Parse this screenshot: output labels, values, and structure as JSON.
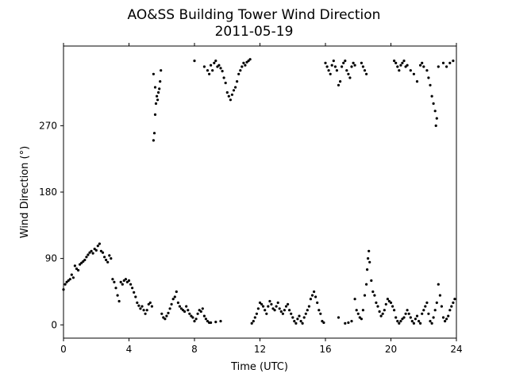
{
  "chart_data": {
    "type": "scatter",
    "title": "AO&SS Building Tower Wind Direction",
    "subtitle": "2011-05-19",
    "xlabel": "Time (UTC)",
    "ylabel": "Wind Direction (°)",
    "xlim": [
      0,
      24
    ],
    "ylim": [
      -18,
      378
    ],
    "xticks": [
      0,
      4,
      8,
      12,
      16,
      20,
      24
    ],
    "yticks": [
      0,
      90,
      180,
      270
    ],
    "grid": false,
    "legend": "none",
    "marker_color": "#000000",
    "series": [
      {
        "points": [
          [
            0.0,
            48
          ],
          [
            0.1,
            55
          ],
          [
            0.2,
            58
          ],
          [
            0.3,
            60
          ],
          [
            0.4,
            62
          ],
          [
            0.5,
            68
          ],
          [
            0.6,
            64
          ],
          [
            0.7,
            80
          ],
          [
            0.8,
            76
          ],
          [
            0.9,
            74
          ],
          [
            1.0,
            82
          ],
          [
            1.1,
            84
          ],
          [
            1.2,
            86
          ],
          [
            1.3,
            88
          ],
          [
            1.4,
            92
          ],
          [
            1.5,
            95
          ],
          [
            1.6,
            98
          ],
          [
            1.7,
            100
          ],
          [
            1.8,
            97
          ],
          [
            1.9,
            103
          ],
          [
            2.0,
            101
          ],
          [
            2.1,
            107
          ],
          [
            2.2,
            110
          ],
          [
            2.3,
            100
          ],
          [
            2.4,
            98
          ],
          [
            2.5,
            92
          ],
          [
            2.6,
            88
          ],
          [
            2.7,
            85
          ],
          [
            2.8,
            94
          ],
          [
            2.9,
            90
          ],
          [
            3.0,
            62
          ],
          [
            3.1,
            58
          ],
          [
            3.2,
            50
          ],
          [
            3.3,
            40
          ],
          [
            3.4,
            32
          ],
          [
            3.5,
            58
          ],
          [
            3.6,
            55
          ],
          [
            3.7,
            60
          ],
          [
            3.8,
            62
          ],
          [
            3.9,
            58
          ],
          [
            4.0,
            60
          ],
          [
            4.1,
            55
          ],
          [
            4.2,
            50
          ],
          [
            4.3,
            44
          ],
          [
            4.4,
            38
          ],
          [
            4.5,
            30
          ],
          [
            4.6,
            26
          ],
          [
            4.7,
            22
          ],
          [
            4.8,
            25
          ],
          [
            4.9,
            20
          ],
          [
            5.0,
            15
          ],
          [
            5.1,
            20
          ],
          [
            5.2,
            28
          ],
          [
            5.3,
            30
          ],
          [
            5.4,
            25
          ],
          [
            5.5,
            250
          ],
          [
            5.55,
            260
          ],
          [
            5.6,
            285
          ],
          [
            5.65,
            300
          ],
          [
            5.7,
            310
          ],
          [
            5.75,
            305
          ],
          [
            5.8,
            315
          ],
          [
            5.85,
            320
          ],
          [
            5.9,
            330
          ],
          [
            5.95,
            345
          ],
          [
            5.5,
            340
          ],
          [
            5.6,
            322
          ],
          [
            6.0,
            15
          ],
          [
            6.1,
            10
          ],
          [
            6.2,
            8
          ],
          [
            6.3,
            12
          ],
          [
            6.4,
            16
          ],
          [
            6.5,
            22
          ],
          [
            6.6,
            28
          ],
          [
            6.7,
            35
          ],
          [
            6.8,
            38
          ],
          [
            6.9,
            45
          ],
          [
            7.0,
            30
          ],
          [
            7.1,
            25
          ],
          [
            7.2,
            22
          ],
          [
            7.3,
            20
          ],
          [
            7.4,
            18
          ],
          [
            7.5,
            25
          ],
          [
            7.6,
            20
          ],
          [
            7.7,
            15
          ],
          [
            7.8,
            12
          ],
          [
            7.9,
            10
          ],
          [
            8.0,
            5
          ],
          [
            8.1,
            8
          ],
          [
            8.2,
            15
          ],
          [
            8.3,
            20
          ],
          [
            8.4,
            18
          ],
          [
            8.5,
            22
          ],
          [
            8.6,
            12
          ],
          [
            8.7,
            8
          ],
          [
            8.8,
            5
          ],
          [
            8.9,
            3
          ],
          [
            9.0,
            3
          ],
          [
            9.3,
            4
          ],
          [
            9.6,
            5
          ],
          [
            8.0,
            358
          ],
          [
            8.6,
            350
          ],
          [
            8.8,
            345
          ],
          [
            8.9,
            340
          ],
          [
            9.0,
            352
          ],
          [
            9.1,
            345
          ],
          [
            9.2,
            355
          ],
          [
            9.3,
            358
          ],
          [
            9.4,
            350
          ],
          [
            9.5,
            352
          ],
          [
            9.6,
            348
          ],
          [
            9.7,
            344
          ],
          [
            9.8,
            335
          ],
          [
            9.9,
            328
          ],
          [
            10.0,
            315
          ],
          [
            10.1,
            310
          ],
          [
            10.2,
            305
          ],
          [
            10.3,
            312
          ],
          [
            10.4,
            318
          ],
          [
            10.5,
            322
          ],
          [
            10.6,
            330
          ],
          [
            10.7,
            340
          ],
          [
            10.8,
            345
          ],
          [
            10.9,
            350
          ],
          [
            11.0,
            355
          ],
          [
            11.1,
            352
          ],
          [
            11.2,
            356
          ],
          [
            11.3,
            358
          ],
          [
            11.4,
            360
          ],
          [
            11.5,
            2
          ],
          [
            11.6,
            5
          ],
          [
            11.7,
            10
          ],
          [
            11.8,
            15
          ],
          [
            11.9,
            22
          ],
          [
            12.0,
            30
          ],
          [
            12.1,
            28
          ],
          [
            12.2,
            25
          ],
          [
            12.3,
            20
          ],
          [
            12.4,
            15
          ],
          [
            12.5,
            25
          ],
          [
            12.6,
            32
          ],
          [
            12.7,
            28
          ],
          [
            12.8,
            22
          ],
          [
            12.9,
            20
          ],
          [
            13.0,
            25
          ],
          [
            13.1,
            30
          ],
          [
            13.2,
            22
          ],
          [
            13.3,
            18
          ],
          [
            13.4,
            15
          ],
          [
            13.5,
            20
          ],
          [
            13.6,
            25
          ],
          [
            13.7,
            28
          ],
          [
            13.8,
            20
          ],
          [
            13.9,
            15
          ],
          [
            14.0,
            10
          ],
          [
            14.1,
            5
          ],
          [
            14.2,
            2
          ],
          [
            14.3,
            8
          ],
          [
            14.4,
            12
          ],
          [
            14.5,
            5
          ],
          [
            14.6,
            2
          ],
          [
            14.7,
            10
          ],
          [
            14.8,
            15
          ],
          [
            14.9,
            20
          ],
          [
            15.0,
            25
          ],
          [
            15.1,
            35
          ],
          [
            15.2,
            40
          ],
          [
            15.3,
            45
          ],
          [
            15.4,
            38
          ],
          [
            15.5,
            30
          ],
          [
            15.6,
            20
          ],
          [
            15.7,
            15
          ],
          [
            15.8,
            5
          ],
          [
            15.9,
            3
          ],
          [
            16.0,
            355
          ],
          [
            16.1,
            350
          ],
          [
            16.2,
            345
          ],
          [
            16.3,
            340
          ],
          [
            16.4,
            352
          ],
          [
            16.5,
            358
          ],
          [
            16.6,
            350
          ],
          [
            16.7,
            345
          ],
          [
            16.8,
            325
          ],
          [
            16.9,
            330
          ],
          [
            17.0,
            350
          ],
          [
            17.1,
            355
          ],
          [
            17.2,
            358
          ],
          [
            17.3,
            345
          ],
          [
            17.4,
            340
          ],
          [
            17.5,
            335
          ],
          [
            17.6,
            350
          ],
          [
            17.7,
            355
          ],
          [
            17.8,
            352
          ],
          [
            16.8,
            10
          ],
          [
            17.2,
            2
          ],
          [
            17.4,
            3
          ],
          [
            17.6,
            5
          ],
          [
            17.8,
            35
          ],
          [
            17.9,
            20
          ],
          [
            18.0,
            15
          ],
          [
            18.1,
            10
          ],
          [
            18.2,
            8
          ],
          [
            18.3,
            20
          ],
          [
            18.4,
            40
          ],
          [
            18.5,
            55
          ],
          [
            18.55,
            75
          ],
          [
            18.6,
            90
          ],
          [
            18.65,
            100
          ],
          [
            18.7,
            85
          ],
          [
            18.8,
            60
          ],
          [
            18.9,
            45
          ],
          [
            19.0,
            40
          ],
          [
            19.1,
            30
          ],
          [
            19.2,
            25
          ],
          [
            19.3,
            18
          ],
          [
            19.4,
            12
          ],
          [
            19.5,
            15
          ],
          [
            19.6,
            20
          ],
          [
            19.7,
            28
          ],
          [
            19.8,
            35
          ],
          [
            19.9,
            32
          ],
          [
            20.0,
            30
          ],
          [
            20.1,
            25
          ],
          [
            20.2,
            20
          ],
          [
            20.3,
            10
          ],
          [
            20.4,
            5
          ],
          [
            20.5,
            2
          ],
          [
            20.6,
            5
          ],
          [
            20.7,
            8
          ],
          [
            20.8,
            10
          ],
          [
            20.9,
            15
          ],
          [
            21.0,
            20
          ],
          [
            21.1,
            15
          ],
          [
            21.2,
            10
          ],
          [
            21.3,
            5
          ],
          [
            21.4,
            2
          ],
          [
            21.5,
            8
          ],
          [
            21.6,
            12
          ],
          [
            21.7,
            5
          ],
          [
            21.8,
            2
          ],
          [
            21.9,
            15
          ],
          [
            22.0,
            20
          ],
          [
            22.1,
            25
          ],
          [
            22.2,
            30
          ],
          [
            22.3,
            15
          ],
          [
            22.4,
            5
          ],
          [
            22.5,
            2
          ],
          [
            22.6,
            10
          ],
          [
            22.7,
            20
          ],
          [
            22.8,
            30
          ],
          [
            22.9,
            55
          ],
          [
            23.0,
            40
          ],
          [
            23.1,
            25
          ],
          [
            23.2,
            10
          ],
          [
            23.3,
            5
          ],
          [
            23.4,
            8
          ],
          [
            23.5,
            12
          ],
          [
            23.6,
            20
          ],
          [
            23.7,
            25
          ],
          [
            23.8,
            30
          ],
          [
            23.9,
            35
          ],
          [
            18.2,
            355
          ],
          [
            18.3,
            350
          ],
          [
            18.4,
            345
          ],
          [
            18.5,
            340
          ],
          [
            20.2,
            358
          ],
          [
            20.3,
            355
          ],
          [
            20.4,
            350
          ],
          [
            20.5,
            345
          ],
          [
            20.6,
            352
          ],
          [
            20.7,
            355
          ],
          [
            20.8,
            358
          ],
          [
            20.9,
            350
          ],
          [
            21.0,
            352
          ],
          [
            21.2,
            345
          ],
          [
            21.4,
            340
          ],
          [
            21.6,
            330
          ],
          [
            21.8,
            352
          ],
          [
            21.9,
            355
          ],
          [
            22.0,
            350
          ],
          [
            22.2,
            345
          ],
          [
            22.3,
            335
          ],
          [
            22.4,
            325
          ],
          [
            22.5,
            310
          ],
          [
            22.6,
            300
          ],
          [
            22.7,
            290
          ],
          [
            22.75,
            270
          ],
          [
            22.8,
            280
          ],
          [
            22.9,
            350
          ],
          [
            23.2,
            355
          ],
          [
            23.4,
            350
          ],
          [
            23.6,
            355
          ],
          [
            23.8,
            358
          ]
        ]
      }
    ]
  }
}
